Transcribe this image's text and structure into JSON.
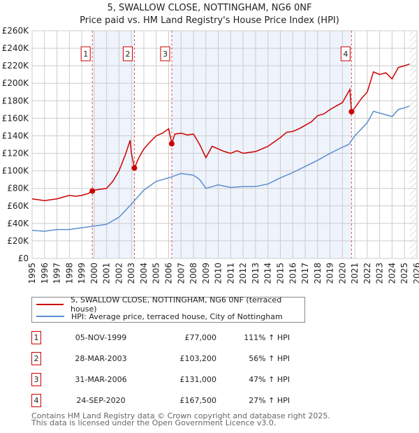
{
  "chart_data": {
    "type": "line",
    "title": "5, SWALLOW CLOSE, NOTTINGHAM, NG6 0NF",
    "subtitle": "Price paid vs. HM Land Registry's House Price Index (HPI)",
    "xlim": [
      1995,
      2026
    ],
    "ylim": [
      0,
      260000
    ],
    "y_ticks": [
      "£0",
      "£20K",
      "£40K",
      "£60K",
      "£80K",
      "£100K",
      "£120K",
      "£140K",
      "£160K",
      "£180K",
      "£200K",
      "£220K",
      "£240K",
      "£260K"
    ],
    "x_ticks": [
      "1995",
      "1996",
      "1997",
      "1998",
      "1999",
      "2000",
      "2001",
      "2002",
      "2003",
      "2004",
      "2005",
      "2006",
      "2007",
      "2008",
      "2009",
      "2010",
      "2011",
      "2012",
      "2013",
      "2014",
      "2015",
      "2016",
      "2017",
      "2018",
      "2019",
      "2020",
      "2021",
      "2022",
      "2023",
      "2024",
      "2025",
      "2026"
    ],
    "grid": true,
    "colors": {
      "property": "#cc0000",
      "hpi": "#5b8fd0",
      "shade": "#eef3fc"
    },
    "series": [
      {
        "name": "5, SWALLOW CLOSE, NOTTINGHAM, NG6 0NF (terraced house)",
        "x": [
          1995,
          1995.5,
          1996,
          1996.5,
          1997,
          1997.5,
          1998,
          1998.5,
          1999,
          1999.5,
          1999.85,
          2000,
          2000.5,
          2001,
          2001.5,
          2002,
          2002.5,
          2002.9,
          2003.0,
          2003.24,
          2003.6,
          2004,
          2004.5,
          2005,
          2005.5,
          2006.0,
          2006.25,
          2006.5,
          2007,
          2007.5,
          2008,
          2008.5,
          2009,
          2009.5,
          2010,
          2010.5,
          2011,
          2011.5,
          2012,
          2012.5,
          2013,
          2013.5,
          2014,
          2014.5,
          2015,
          2015.5,
          2016,
          2016.5,
          2017,
          2017.5,
          2018,
          2018.5,
          2019,
          2019.5,
          2020,
          2020.6,
          2020.73,
          2021,
          2021.5,
          2022,
          2022.5,
          2023,
          2023.5,
          2024,
          2024.5,
          2025,
          2025.4
        ],
        "y": [
          68000,
          67000,
          66000,
          67000,
          68000,
          70000,
          72000,
          71000,
          72000,
          74000,
          77000,
          78000,
          79000,
          80000,
          88000,
          100000,
          118000,
          135000,
          120000,
          103200,
          115000,
          125000,
          133000,
          140000,
          143000,
          148000,
          131000,
          142000,
          143000,
          141000,
          142000,
          130000,
          115000,
          128000,
          125000,
          122000,
          120000,
          123000,
          120000,
          121000,
          122000,
          125000,
          128000,
          133000,
          138000,
          144000,
          145000,
          148000,
          152000,
          156000,
          163000,
          165000,
          170000,
          174000,
          178000,
          193000,
          167500,
          172000,
          182000,
          190000,
          213000,
          210000,
          212000,
          205000,
          218000,
          220000,
          222000
        ]
      },
      {
        "name": "HPI: Average price, terraced house, City of Nottingham",
        "x": [
          1995,
          1996,
          1997,
          1998,
          1999,
          2000,
          2001,
          2002,
          2003,
          2004,
          2005,
          2006,
          2007,
          2008,
          2008.5,
          2009,
          2010,
          2011,
          2012,
          2013,
          2014,
          2015,
          2016,
          2017,
          2018,
          2019,
          2020,
          2020.5,
          2021,
          2022,
          2022.5,
          2023,
          2024,
          2024.5,
          2025,
          2025.4
        ],
        "y": [
          32000,
          31000,
          33000,
          33000,
          35000,
          37000,
          39000,
          47000,
          62000,
          78000,
          88000,
          92000,
          97000,
          95000,
          90000,
          80000,
          84000,
          81000,
          82000,
          82000,
          85000,
          92000,
          98000,
          105000,
          112000,
          120000,
          127000,
          130000,
          140000,
          155000,
          168000,
          166000,
          162000,
          170000,
          172000,
          174000
        ]
      }
    ],
    "sales": [
      {
        "label": "1",
        "x": 1999.85,
        "y": 77000,
        "date": "05-NOV-1999",
        "price": "£77,000",
        "hpi": "111% ↑ HPI"
      },
      {
        "label": "2",
        "x": 2003.24,
        "y": 103200,
        "date": "28-MAR-2003",
        "price": "£103,200",
        "hpi": "56% ↑ HPI"
      },
      {
        "label": "3",
        "x": 2006.25,
        "y": 131000,
        "date": "31-MAR-2006",
        "price": "£131,000",
        "hpi": "47% ↑ HPI"
      },
      {
        "label": "4",
        "x": 2020.73,
        "y": 167500,
        "date": "24-SEP-2020",
        "price": "£167,500",
        "hpi": "27% ↑ HPI"
      }
    ],
    "forecast_start": 2025.4
  },
  "footer": [
    "Contains HM Land Registry data © Crown copyright and database right 2025.",
    "This data is licensed under the Open Government Licence v3.0."
  ]
}
